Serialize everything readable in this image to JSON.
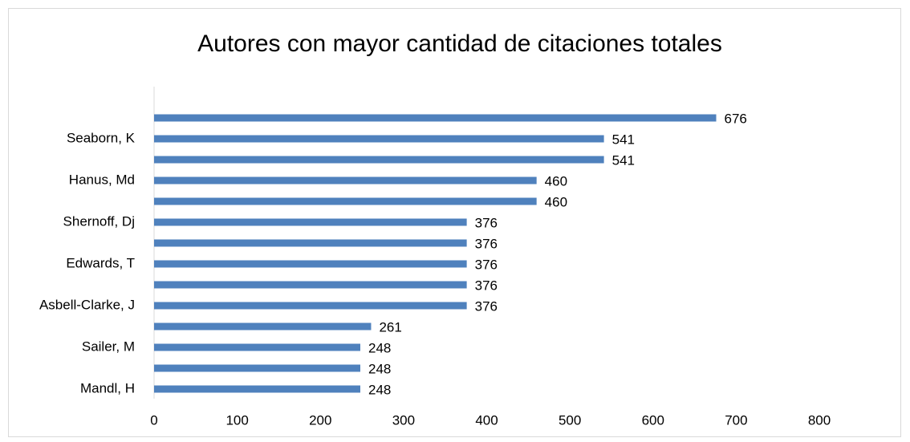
{
  "chart_data": {
    "type": "bar",
    "orientation": "horizontal",
    "title": "Autores con mayor cantidad de citaciones totales",
    "categories": [
      null,
      "Seaborn, K",
      null,
      "Hanus, Md",
      null,
      "Shernoff, Dj",
      null,
      "Edwards, T",
      null,
      "Asbell-Clarke, J",
      null,
      "Sailer, M",
      null,
      "Mandl, H"
    ],
    "values": [
      676,
      541,
      541,
      460,
      460,
      376,
      376,
      376,
      376,
      376,
      261,
      248,
      248,
      248
    ],
    "color": "#4f81bd",
    "xlim": [
      0,
      800
    ],
    "xticks": [
      0,
      100,
      200,
      300,
      400,
      500,
      600,
      700,
      800
    ],
    "grid": false
  }
}
